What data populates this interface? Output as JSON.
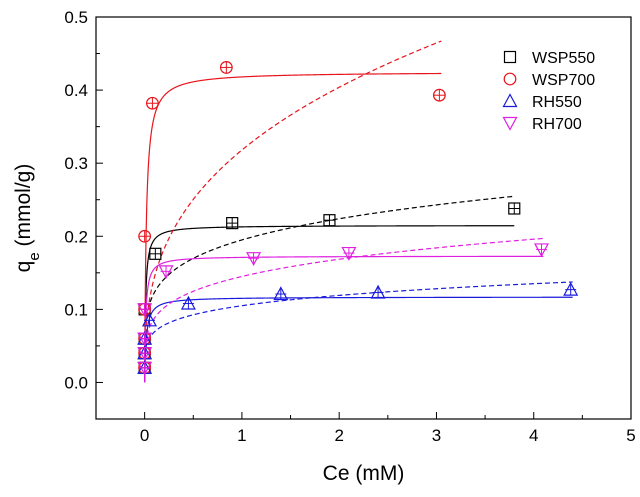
{
  "chart_data": {
    "type": "scatter",
    "title": "",
    "xlabel": "Ce (mM)",
    "ylabel_main": "q",
    "ylabel_sub": "e",
    "ylabel_rest": " (mmol/g)",
    "xlim": [
      -0.5,
      5
    ],
    "ylim": [
      -0.05,
      0.5
    ],
    "x_ticks": [
      0,
      1,
      2,
      3,
      4,
      5
    ],
    "x_tick_labels": [
      "0",
      "1",
      "2",
      "3",
      "4",
      "5"
    ],
    "y_ticks": [
      0.0,
      0.1,
      0.2,
      0.3,
      0.4,
      0.5
    ],
    "y_tick_labels": [
      "0.0",
      "0.1",
      "0.2",
      "0.3",
      "0.4",
      "0.5"
    ],
    "grid": false,
    "legend_position": "top-right",
    "series": [
      {
        "name": "WSP550",
        "marker": "square",
        "color": "#000000",
        "points": [
          [
            0.0,
            0.02
          ],
          [
            0.0,
            0.04
          ],
          [
            0.0,
            0.06
          ],
          [
            0.0,
            0.1
          ],
          [
            0.11,
            0.176
          ],
          [
            0.9,
            0.218
          ],
          [
            1.9,
            0.222
          ],
          [
            3.8,
            0.238
          ]
        ],
        "fit_solid": {
          "model": "langmuir",
          "qmax": 0.215,
          "K": 100,
          "x_max": 3.8
        },
        "fit_dashed": {
          "model": "freundlich",
          "Kf": 0.195,
          "n": 5,
          "x_max": 3.8
        }
      },
      {
        "name": "WSP700",
        "marker": "circle",
        "color": "#e8141c",
        "points": [
          [
            0.0,
            0.02
          ],
          [
            0.0,
            0.04
          ],
          [
            0.0,
            0.06
          ],
          [
            0.0,
            0.1
          ],
          [
            0.0,
            0.2
          ],
          [
            0.08,
            0.382
          ],
          [
            0.84,
            0.431
          ],
          [
            3.03,
            0.393
          ]
        ],
        "fit_solid": {
          "model": "langmuir",
          "qmax": 0.425,
          "K": 60,
          "x_max": 3.05
        },
        "fit_dashed": {
          "model": "freundlich",
          "Kf": 0.318,
          "n": 2.9,
          "x_max": 3.05
        }
      },
      {
        "name": "RH550",
        "marker": "triangle-up",
        "color": "#1a1adc",
        "points": [
          [
            0.0,
            0.02
          ],
          [
            0.0,
            0.04
          ],
          [
            0.0,
            0.06
          ],
          [
            0.05,
            0.085
          ],
          [
            0.45,
            0.108
          ],
          [
            1.4,
            0.121
          ],
          [
            2.4,
            0.123
          ],
          [
            4.38,
            0.127
          ]
        ],
        "fit_solid": {
          "model": "langmuir",
          "qmax": 0.117,
          "K": 60,
          "x_max": 4.4
        },
        "fit_dashed": {
          "model": "freundlich",
          "Kf": 0.105,
          "n": 5.5,
          "x_max": 4.4
        }
      },
      {
        "name": "RH700",
        "marker": "triangle-down",
        "color": "#e020e0",
        "points": [
          [
            0.0,
            0.02
          ],
          [
            0.0,
            0.04
          ],
          [
            0.0,
            0.06
          ],
          [
            0.0,
            0.1
          ],
          [
            0.22,
            0.152
          ],
          [
            1.12,
            0.17
          ],
          [
            2.1,
            0.177
          ],
          [
            4.08,
            0.182
          ]
        ],
        "fit_solid": {
          "model": "langmuir",
          "qmax": 0.173,
          "K": 90,
          "x_max": 4.1
        },
        "fit_dashed": {
          "model": "freundlich",
          "Kf": 0.145,
          "n": 4.6,
          "x_max": 4.1
        }
      }
    ]
  }
}
